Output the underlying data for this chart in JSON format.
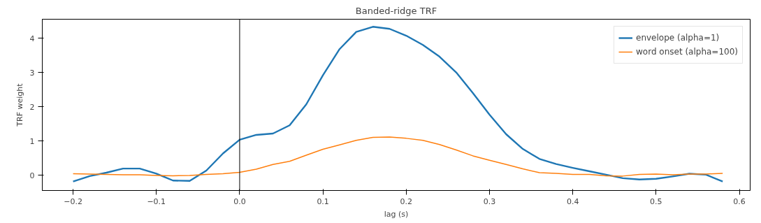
{
  "chart_data": {
    "type": "line",
    "title": "Banded-ridge TRF",
    "xlabel": "lag (s)",
    "ylabel": "TRF weight",
    "x": [
      -0.2,
      -0.18,
      -0.16,
      -0.14,
      -0.12,
      -0.1,
      -0.08,
      -0.06,
      -0.04,
      -0.02,
      0,
      0.02,
      0.04,
      0.06,
      0.08,
      0.1,
      0.12,
      0.14,
      0.16,
      0.18,
      0.2,
      0.22,
      0.24,
      0.26,
      0.28,
      0.3,
      0.32,
      0.34,
      0.36,
      0.38,
      0.4,
      0.42,
      0.44,
      0.46,
      0.48,
      0.5,
      0.52,
      0.54,
      0.56,
      0.58
    ],
    "series": [
      {
        "name": "envelope (alpha=1)",
        "color": "#1f77b4",
        "values": [
          -0.18,
          -0.02,
          0.08,
          0.2,
          0.2,
          0.05,
          -0.15,
          -0.16,
          0.14,
          0.64,
          1.04,
          1.18,
          1.22,
          1.46,
          2.07,
          2.92,
          3.68,
          4.18,
          4.33,
          4.27,
          4.07,
          3.8,
          3.46,
          3.0,
          2.4,
          1.77,
          1.2,
          0.77,
          0.48,
          0.33,
          0.22,
          0.12,
          0.02,
          -0.08,
          -0.12,
          -0.1,
          -0.03,
          0.05,
          0.02,
          -0.18
        ]
      },
      {
        "name": "word onset (alpha=100)",
        "color": "#ff7f0e",
        "values": [
          0.05,
          0.04,
          0.03,
          0.02,
          0.02,
          0.0,
          -0.01,
          0.0,
          0.03,
          0.05,
          0.09,
          0.18,
          0.32,
          0.41,
          0.59,
          0.76,
          0.89,
          1.02,
          1.11,
          1.12,
          1.08,
          1.02,
          0.9,
          0.74,
          0.57,
          0.44,
          0.32,
          0.19,
          0.08,
          0.06,
          0.03,
          0.03,
          -0.01,
          -0.02,
          0.03,
          0.04,
          0.02,
          0.04,
          0.04,
          0.06
        ]
      }
    ],
    "xlim": [
      -0.237,
      0.613
    ],
    "ylim": [
      -0.44,
      4.55
    ],
    "xticks": [
      {
        "value": -0.2,
        "label": "−0.2"
      },
      {
        "value": -0.1,
        "label": "−0.1"
      },
      {
        "value": 0,
        "label": "0.0"
      },
      0.1,
      0.2,
      0.3,
      0.4,
      0.5,
      0.6
    ],
    "yticks": [
      0,
      1,
      2,
      3,
      4
    ],
    "ref_lines": [
      {
        "axis": "x",
        "value": 0,
        "color": "#000000"
      }
    ],
    "grid": false,
    "legend": "top right",
    "line_style": "solid"
  }
}
